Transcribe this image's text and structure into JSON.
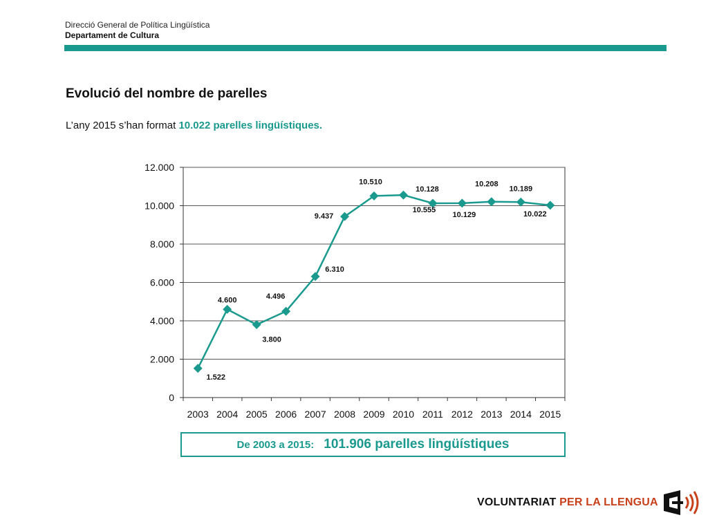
{
  "header": {
    "org_line1": "Direcció General de Política Lingüística",
    "org_line2": "Departament de Cultura"
  },
  "slide": {
    "title": "Evolució del nombre de parelles",
    "subtitle_prefix": "L’any 2015 s’han format ",
    "subtitle_highlight": "10.022 parelles lingüístiques."
  },
  "summary": {
    "label": "De 2003 a 2015:",
    "value": "101.906 parelles lingüístiques"
  },
  "logo": {
    "text_part1": "VOLUNTARIAT ",
    "text_part2": "PER LA LLENGUA",
    "icon": "speaker-waves-icon"
  },
  "colors": {
    "accent": "#1a9a8e",
    "logo_accent": "#c8401a"
  },
  "chart_data": {
    "type": "line",
    "categories": [
      "2003",
      "2004",
      "2005",
      "2006",
      "2007",
      "2008",
      "2009",
      "2010",
      "2011",
      "2012",
      "2013",
      "2014",
      "2015"
    ],
    "series": [
      {
        "values": [
          1522,
          4600,
          3800,
          4496,
          6310,
          9437,
          10510,
          10555,
          10128,
          10129,
          10208,
          10189,
          10022
        ],
        "labels": [
          "1.522",
          "4.600",
          "3.800",
          "4.496",
          "6.310",
          "9.437",
          "10.510",
          "10.555",
          "10.128",
          "10.129",
          "10.208",
          "10.189",
          "10.022"
        ]
      }
    ],
    "ylim": [
      0,
      12000
    ],
    "yticks": [
      0,
      2000,
      4000,
      6000,
      8000,
      10000,
      12000
    ],
    "ytick_labels": [
      "0",
      "2.000",
      "4.000",
      "6.000",
      "8.000",
      "10.000",
      "12.000"
    ],
    "grid": true,
    "marker": "diamond",
    "color": "#1a9a8e"
  }
}
